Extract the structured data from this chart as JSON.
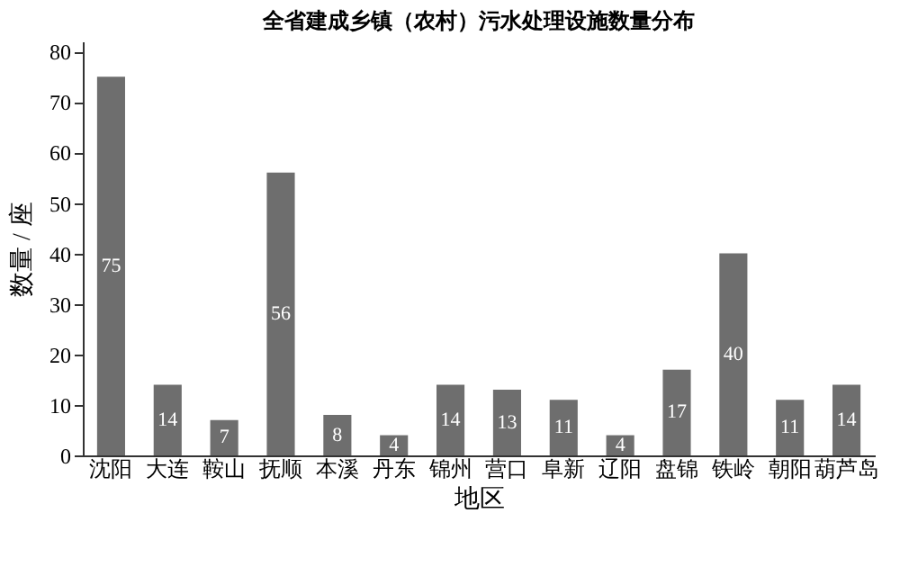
{
  "chart_data": {
    "type": "bar",
    "title": "全省建成乡镇（农村）污水处理设施数量分布",
    "xlabel": "地区",
    "ylabel": "数量 / 座",
    "categories": [
      "沈阳",
      "大连",
      "鞍山",
      "抚顺",
      "本溪",
      "丹东",
      "锦州",
      "营口",
      "阜新",
      "辽阳",
      "盘锦",
      "铁岭",
      "朝阳",
      "葫芦岛"
    ],
    "values": [
      75,
      14,
      7,
      56,
      8,
      4,
      14,
      13,
      11,
      4,
      17,
      40,
      11,
      14
    ],
    "color": "#6e6e6e",
    "ylim": [
      0,
      82
    ],
    "yticks": [
      0,
      10,
      20,
      30,
      40,
      50,
      60,
      70,
      80
    ],
    "grid": false,
    "data_labels": true
  }
}
